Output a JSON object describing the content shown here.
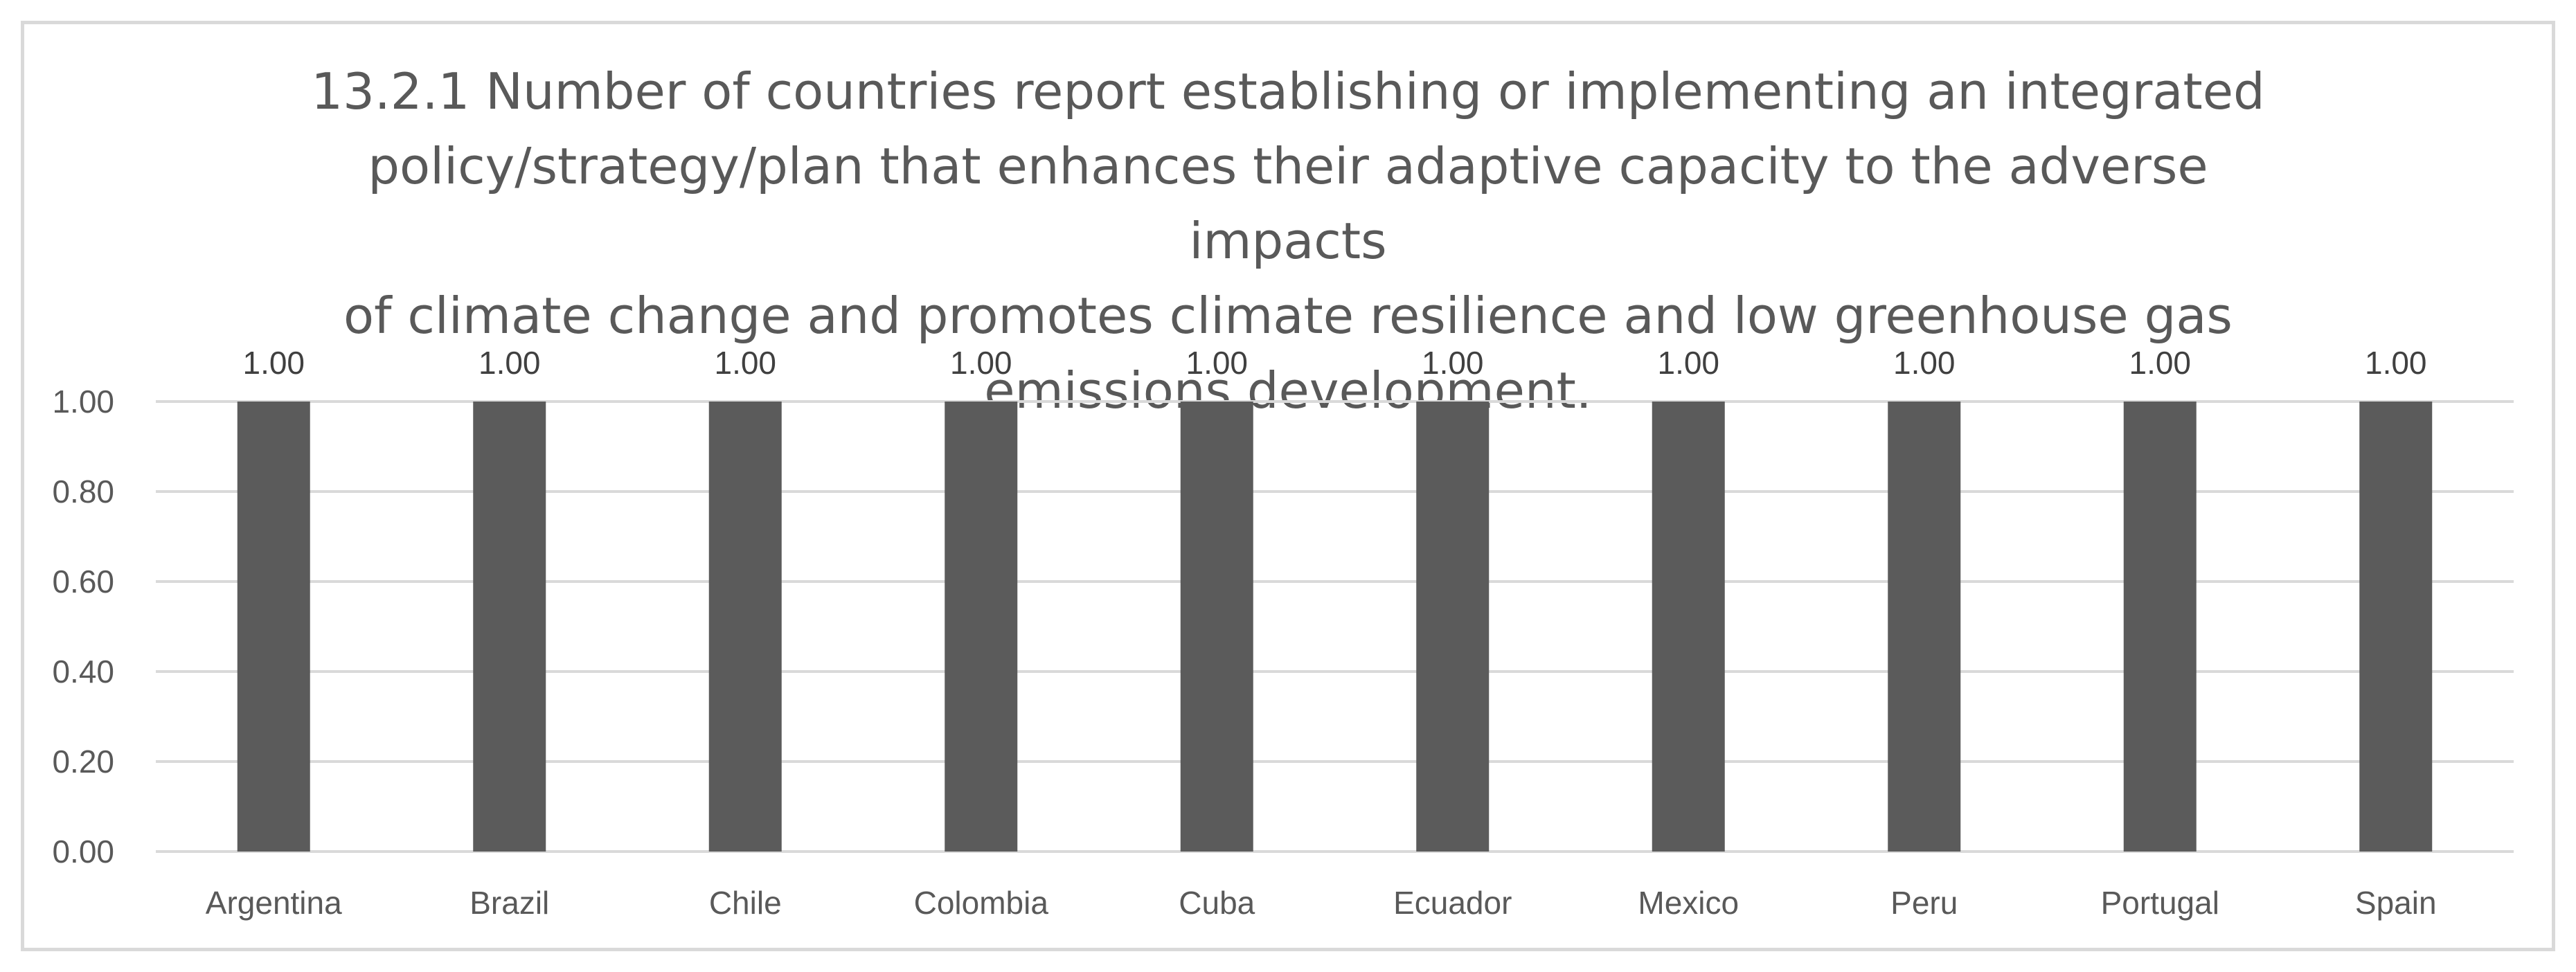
{
  "chart_data": {
    "type": "bar",
    "title": "13.2.1 Number of countries report establishing or implementing an integrated policy/strategy/plan that enhances their adaptive capacity to the adverse impacts of climate change and promotes climate resilience and low greenhouse gas emissions development.",
    "title_lines": [
      "13.2.1 Number of countries report establishing or implementing an integrated",
      "policy/strategy/plan that enhances their adaptive capacity to the adverse impacts",
      "of climate change and promotes climate resilience and low greenhouse gas",
      "emissions development."
    ],
    "categories": [
      "Argentina",
      "Brazil",
      "Chile",
      "Colombia",
      "Cuba",
      "Ecuador",
      "Mexico",
      "Peru",
      "Portugal",
      "Spain"
    ],
    "values": [
      1.0,
      1.0,
      1.0,
      1.0,
      1.0,
      1.0,
      1.0,
      1.0,
      1.0,
      1.0
    ],
    "data_labels": [
      "1.00",
      "1.00",
      "1.00",
      "1.00",
      "1.00",
      "1.00",
      "1.00",
      "1.00",
      "1.00",
      "1.00"
    ],
    "yticks": [
      "0.00",
      "0.20",
      "0.40",
      "0.60",
      "0.80",
      "1.00"
    ],
    "ytick_values": [
      0,
      0.2,
      0.4,
      0.6,
      0.8,
      1.0
    ],
    "ylim": [
      0,
      1.0
    ],
    "xlabel": "",
    "ylabel": "",
    "grid": true,
    "legend": "none",
    "colors": {
      "bar": "#5b5b5b",
      "grid": "#d9d9d9",
      "text": "#595959"
    }
  }
}
